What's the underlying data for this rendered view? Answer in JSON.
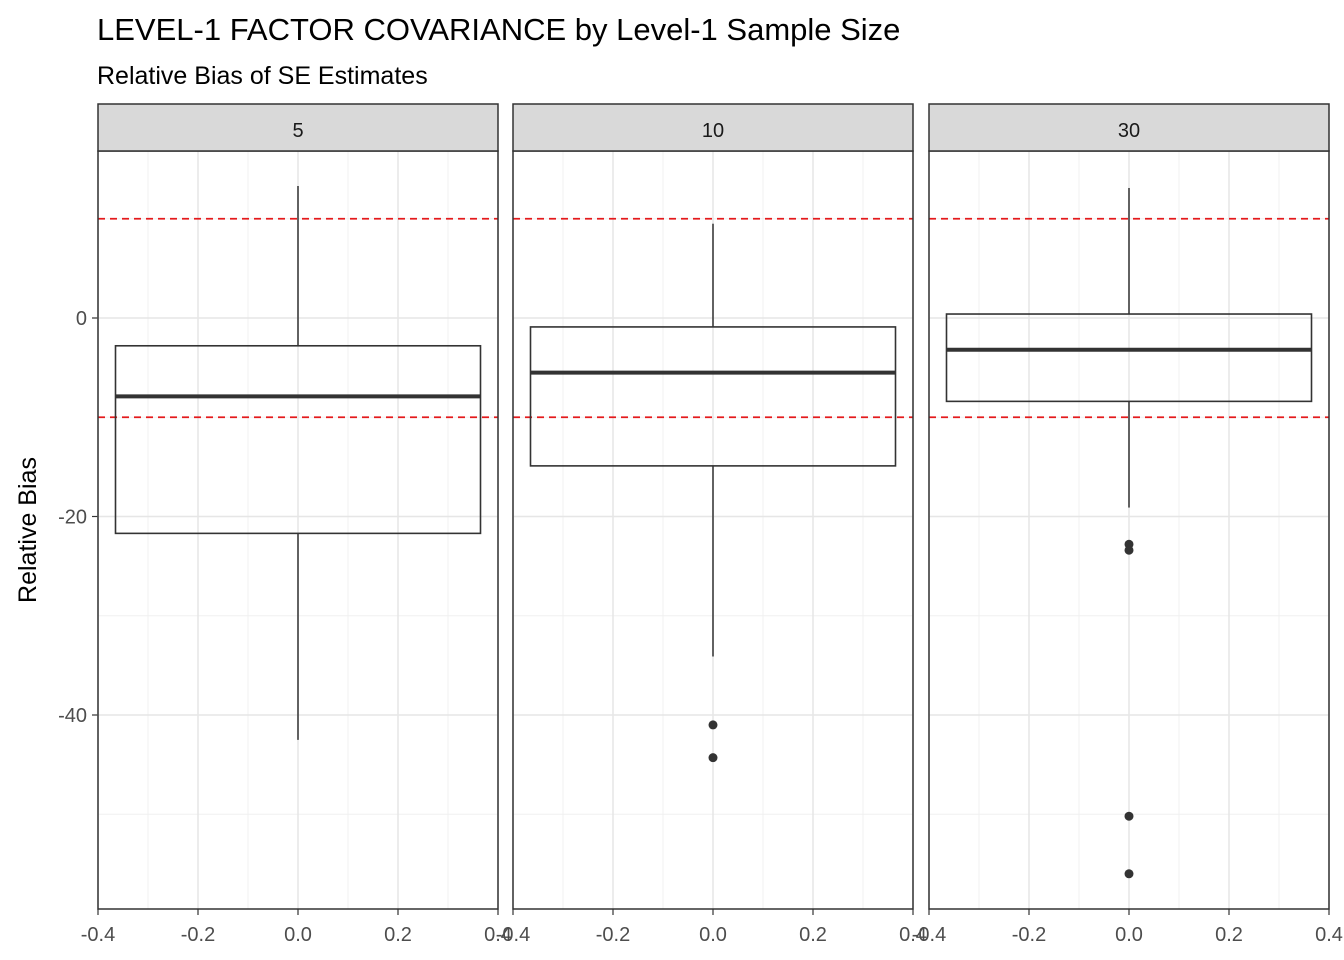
{
  "chart_data": {
    "type": "boxplot",
    "title": "LEVEL-1 FACTOR COVARIANCE by Level-1 Sample Size",
    "subtitle": "Relative Bias of SE Estimates",
    "xlabel": "",
    "ylabel": "Relative Bias",
    "xlim": [
      -0.4,
      0.4
    ],
    "ylim": [
      -57,
      17
    ],
    "x_ticks": [
      "-0.4",
      "-0.2",
      "0.0",
      "0.2",
      "0.4"
    ],
    "y_ticks": [
      "0",
      "-20",
      "-40"
    ],
    "reference_lines": [
      10,
      -10
    ],
    "reference_line_color": "#e41a1c",
    "grid": true,
    "panels": [
      {
        "label": "5",
        "min": -42.5,
        "q1": -21.7,
        "median": -7.9,
        "q3": -2.8,
        "max": 13.3,
        "outliers": []
      },
      {
        "label": "10",
        "min": -34.1,
        "q1": -14.9,
        "median": -5.5,
        "q3": -0.9,
        "max": 9.5,
        "outliers": [
          -41.0,
          -44.3
        ]
      },
      {
        "label": "30",
        "min": -19.1,
        "q1": -8.4,
        "median": -3.2,
        "q3": 0.4,
        "max": 13.1,
        "outliers": [
          -22.8,
          -23.4,
          -50.2,
          -56.0
        ]
      }
    ]
  }
}
